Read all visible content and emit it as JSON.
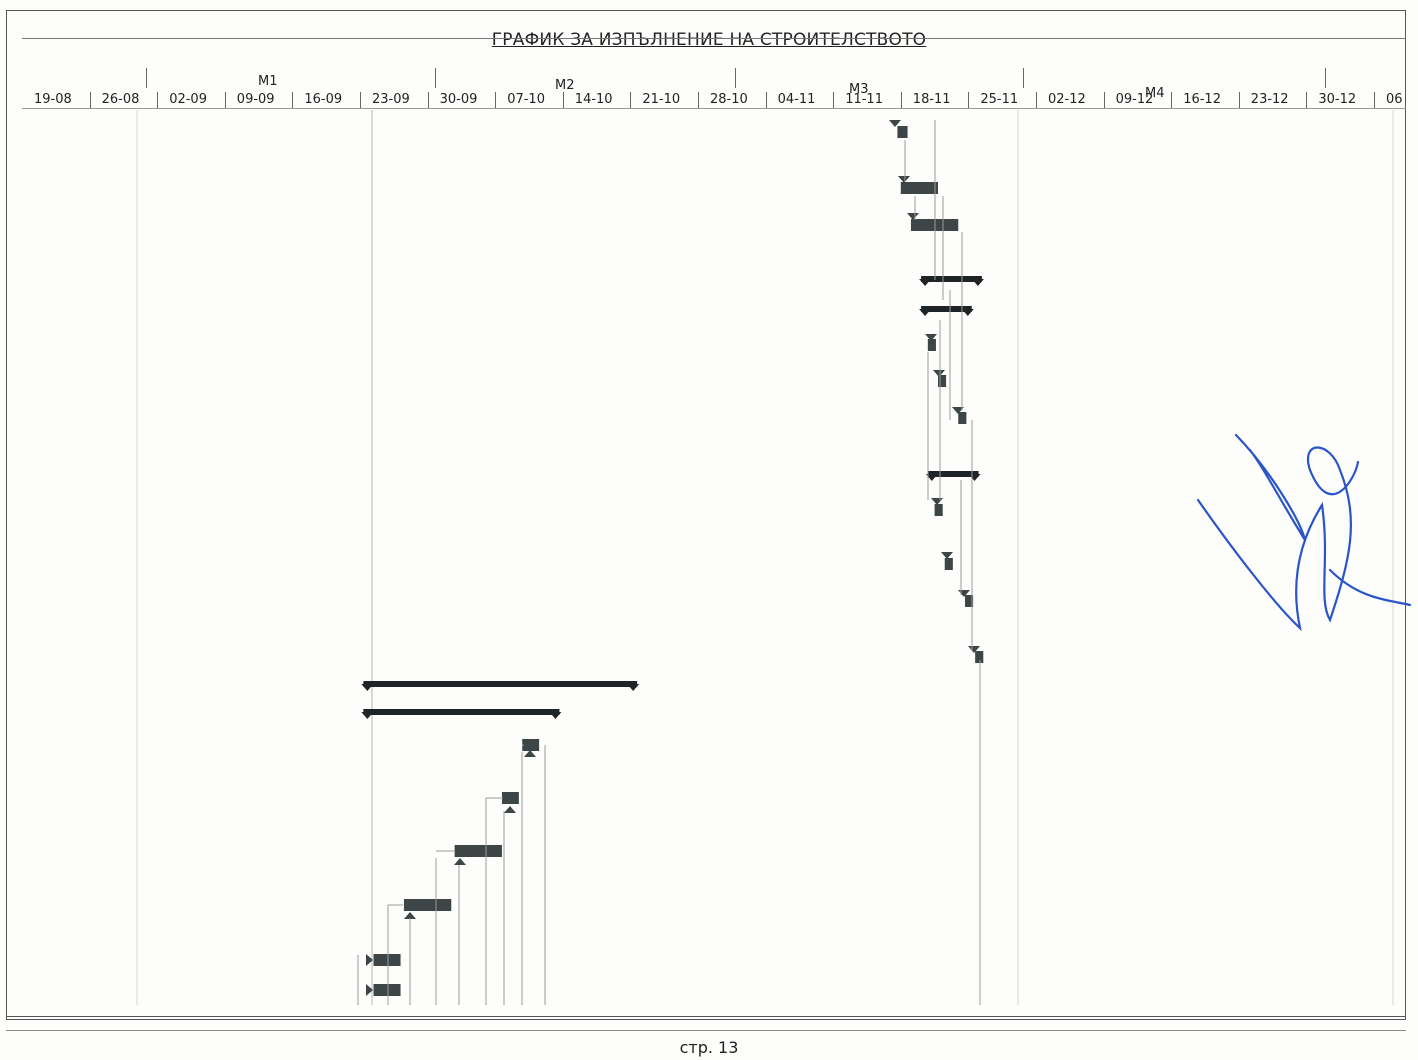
{
  "document": {
    "title": "ГРАФИК ЗА ИЗПЪЛНЕНИЕ НА СТРОИТЕЛСТВОТО",
    "page_label": "стр. 13",
    "months": [
      "М1",
      "М2",
      "М3",
      "М4"
    ],
    "weeks": [
      "19-08",
      "26-08",
      "02-09",
      "09-09",
      "16-09",
      "23-09",
      "30-09",
      "07-10",
      "14-10",
      "21-10",
      "28-10",
      "04-11",
      "11-11",
      "18-11",
      "25-11",
      "02-12",
      "09-12",
      "16-12",
      "23-12",
      "30-12",
      "06"
    ],
    "signature_present": true,
    "bar_color": "#3d4547",
    "summary_color": "#1f2426",
    "signature_color": "#2a55c8"
  },
  "chart_data": {
    "type": "gantt",
    "time_axis": "weeks",
    "tasks": [
      {
        "kind": "task",
        "start_week": 12.95,
        "duration_weeks": 0.15
      },
      {
        "kind": "task",
        "start_week": 13.0,
        "duration_weeks": 0.55
      },
      {
        "kind": "task",
        "start_week": 13.15,
        "duration_weeks": 0.7
      },
      {
        "kind": "summary",
        "start_week": 13.3,
        "duration_weeks": 0.9
      },
      {
        "kind": "summary",
        "start_week": 13.3,
        "duration_weeks": 0.75
      },
      {
        "kind": "task",
        "start_week": 13.4,
        "duration_weeks": 0.12
      },
      {
        "kind": "task",
        "start_week": 13.55,
        "duration_weeks": 0.12
      },
      {
        "kind": "task",
        "start_week": 13.85,
        "duration_weeks": 0.12
      },
      {
        "kind": "summary",
        "start_week": 13.4,
        "duration_weeks": 0.75
      },
      {
        "kind": "task",
        "start_week": 13.5,
        "duration_weeks": 0.12
      },
      {
        "kind": "task",
        "start_week": 13.65,
        "duration_weeks": 0.12
      },
      {
        "kind": "task",
        "start_week": 13.95,
        "duration_weeks": 0.12
      },
      {
        "kind": "task",
        "start_week": 14.1,
        "duration_weeks": 0.12
      },
      {
        "kind": "summary",
        "start_week": 5.05,
        "duration_weeks": 4.05
      },
      {
        "kind": "summary",
        "start_week": 5.05,
        "duration_weeks": 2.9
      },
      {
        "kind": "task",
        "start_week": 7.4,
        "duration_weeks": 0.25
      },
      {
        "kind": "task",
        "start_week": 7.1,
        "duration_weeks": 0.25
      },
      {
        "kind": "task",
        "start_week": 6.4,
        "duration_weeks": 0.7
      },
      {
        "kind": "task",
        "start_week": 5.65,
        "duration_weeks": 0.7
      },
      {
        "kind": "task",
        "start_week": 5.2,
        "duration_weeks": 0.4
      },
      {
        "kind": "task",
        "start_week": 5.2,
        "duration_weeks": 0.4
      }
    ]
  }
}
